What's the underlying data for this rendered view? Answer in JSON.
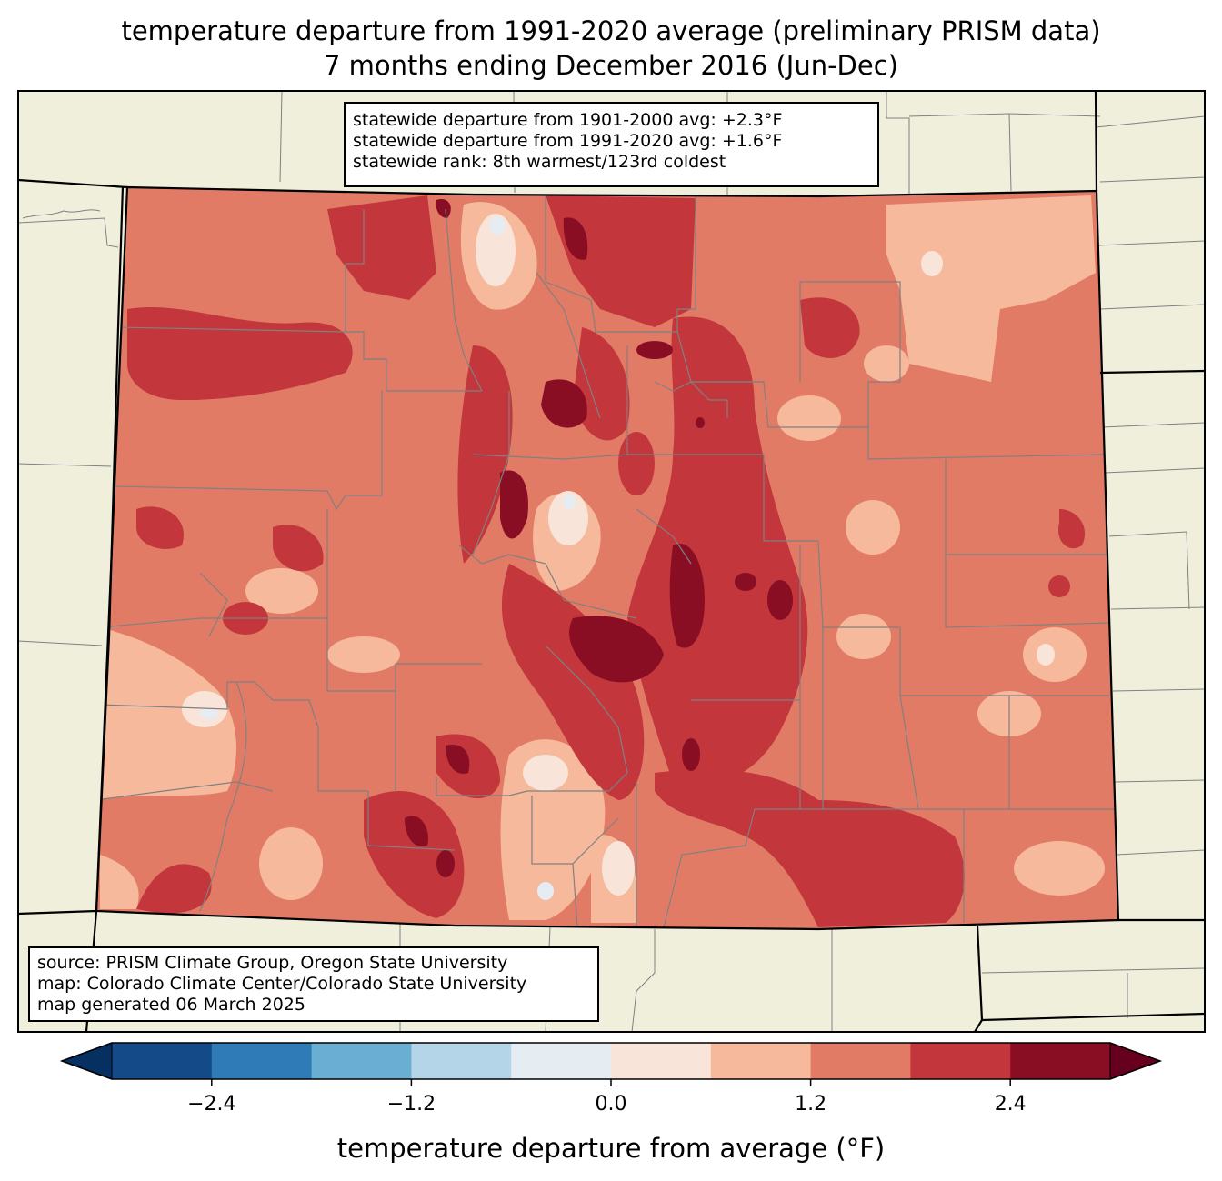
{
  "title": {
    "line1": "temperature departure from 1991-2020 average (preliminary PRISM data)",
    "line2": "7 months ending December 2016 (Jun-Dec)"
  },
  "stats_box": {
    "lines": [
      "statewide departure from 1901-2000 avg: +2.3°F",
      "statewide departure from 1991-2020 avg: +1.6°F",
      "statewide rank: 8th warmest/123rd coldest"
    ]
  },
  "source_box": {
    "lines": [
      "source: PRISM Climate Group, Oregon State University",
      "map: Colorado Climate Center/Colorado State University",
      "map generated 06 March 2025"
    ]
  },
  "colorbar": {
    "label": "temperature departure from average (°F)",
    "levels": [
      -3.0,
      -2.4,
      -1.8,
      -1.2,
      -0.6,
      0.0,
      0.6,
      1.2,
      1.8,
      2.4,
      3.0
    ],
    "colors": [
      "#144a87",
      "#2f7bb8",
      "#6aaed3",
      "#b3d5e7",
      "#e5edf3",
      "#f9e4d9",
      "#f6b99c",
      "#e27b65",
      "#c2363c",
      "#8a0e23"
    ],
    "under_color": "#053061",
    "over_color": "#67001f",
    "tick_values": [
      -2.4,
      -1.2,
      0.0,
      1.2,
      2.4
    ],
    "tick_labels": [
      "−2.4",
      "−1.2",
      "0.0",
      "1.2",
      "2.4"
    ]
  },
  "map": {
    "background_color": "#f0efdc",
    "county_line_color": "#808080",
    "state_line_color": "#000000"
  }
}
